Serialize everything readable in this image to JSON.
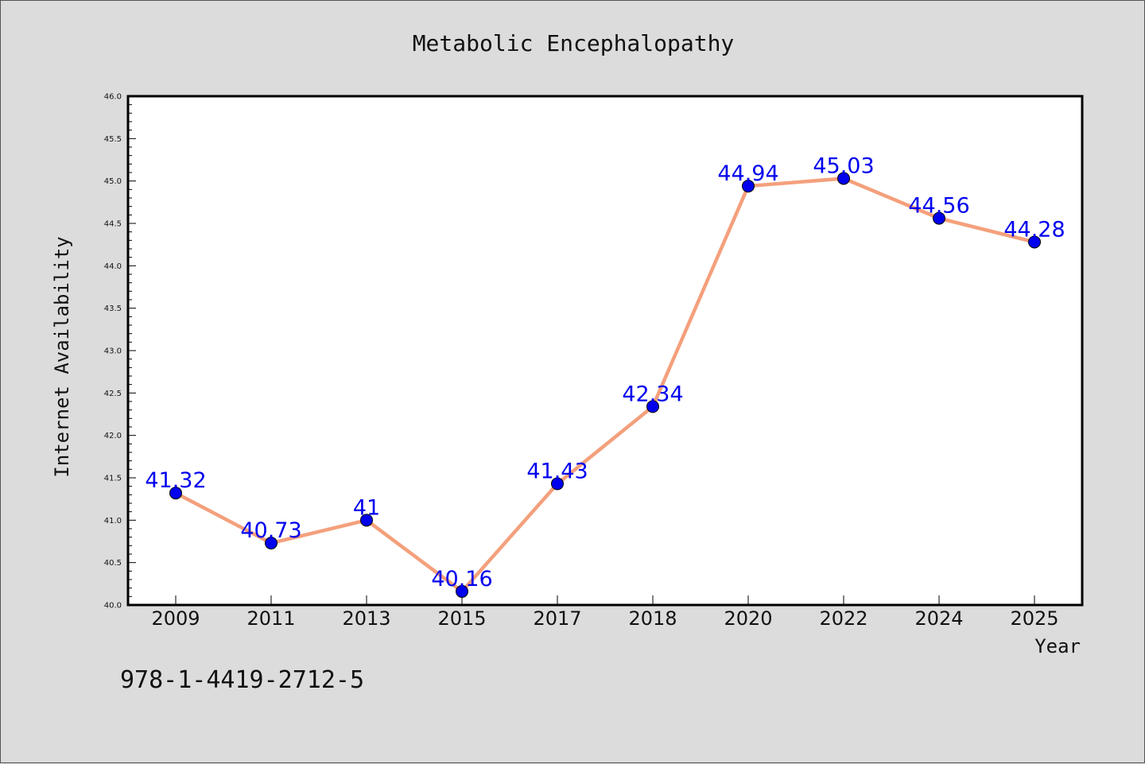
{
  "chart_data": {
    "type": "line",
    "title": "Metabolic Encephalopathy",
    "xlabel": "Year",
    "ylabel": "Internet Availability",
    "categories": [
      "2009",
      "2011",
      "2013",
      "2015",
      "2017",
      "2018",
      "2020",
      "2022",
      "2024",
      "2025"
    ],
    "series": [
      {
        "values": [
          41.32,
          40.73,
          41,
          40.16,
          41.43,
          42.34,
          44.94,
          45.03,
          44.56,
          44.28
        ],
        "data_labels": [
          "41.32",
          "40.73",
          "41",
          "40.16",
          "41.43",
          "42.34",
          "44.94",
          "45.03",
          "44.56",
          "44.28"
        ],
        "line_color": "#f4a07c",
        "marker_color": "#0000ee"
      }
    ],
    "ylim": [
      40.0,
      46.0
    ],
    "yticks": [
      "40.0",
      "40.5",
      "41.0",
      "41.5",
      "42.0",
      "42.5",
      "43.0",
      "43.5",
      "44.0",
      "44.5",
      "45.0",
      "45.5",
      "46.0"
    ],
    "grid": false,
    "legend": "none"
  },
  "footnote": "978-1-4419-2712-5",
  "colors": {
    "background": "#dcdcdc",
    "plot_background": "#ffffff",
    "line": "#f4a07c",
    "marker": "#0000ee",
    "data_label": "#0000ee"
  }
}
